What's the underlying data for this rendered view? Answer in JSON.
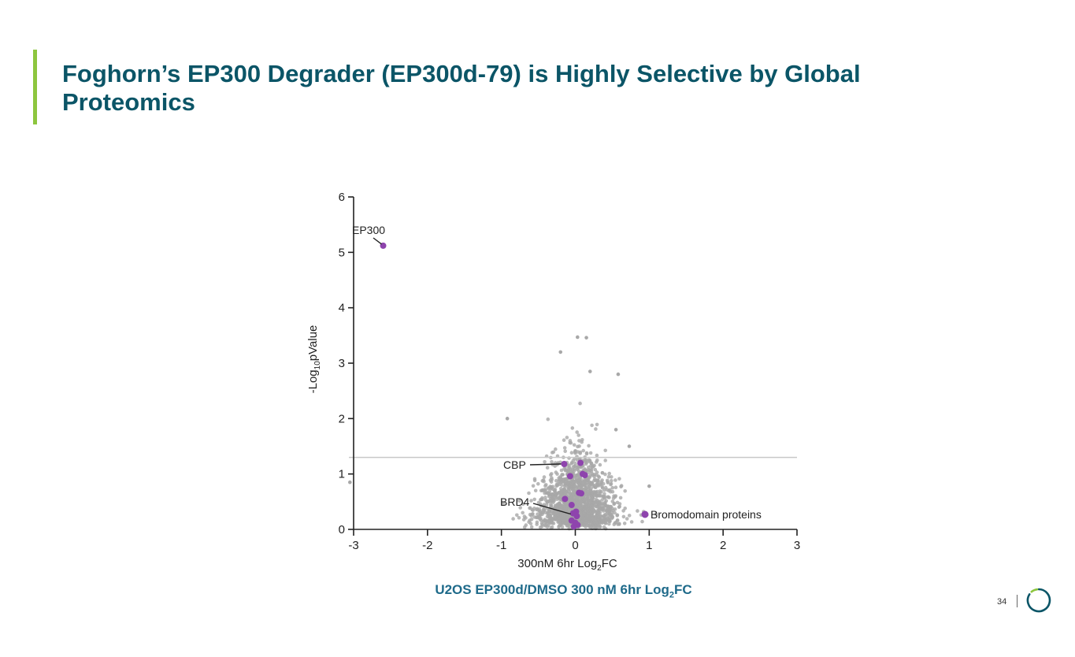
{
  "slide": {
    "title": "Foghorn’s EP300 Degrader (EP300d-79) is Highly Selective by Global Proteomics",
    "caption_main": "U2OS EP300d/DMSO 300 nM 6hr Log",
    "caption_sub": "2",
    "caption_tail": "FC",
    "page_number": "34",
    "accent_color": "#8dc63f",
    "title_color": "#0b5567",
    "logo_icon": "foghorn-ring-logo-icon"
  },
  "chart_data": {
    "type": "scatter",
    "title": "",
    "xlabel_main": "300nM 6hr Log",
    "xlabel_sub": "2",
    "xlabel_tail": "FC",
    "ylabel_main": "-Log",
    "ylabel_sub": "10",
    "ylabel_tail": "pValue",
    "xlim": [
      -3,
      3
    ],
    "ylim": [
      0,
      6
    ],
    "x_ticks": [
      -3,
      -2,
      -1,
      0,
      1,
      2,
      3
    ],
    "x_tick_labels": [
      "-3",
      "-2",
      "-1",
      "0",
      "1",
      "2",
      "3"
    ],
    "y_ticks": [
      0,
      1,
      2,
      3,
      4,
      5,
      6
    ],
    "y_tick_labels": [
      "0",
      "1",
      "2",
      "3",
      "4",
      "5",
      "6"
    ],
    "significance_line_y": 1.3,
    "grid": false,
    "legend_position": "bottom-right",
    "colors": {
      "background_points": "#a8a8a8",
      "highlight_points": "#8e44ad",
      "axis": "#222222",
      "threshold_line": "#c8c8c8"
    },
    "series": [
      {
        "name": "Bromodomain proteins",
        "points": [
          {
            "x": -2.6,
            "y": 5.12
          },
          {
            "x": -0.15,
            "y": 1.18
          },
          {
            "x": 0.07,
            "y": 1.2
          },
          {
            "x": -0.07,
            "y": 0.96
          },
          {
            "x": 0.1,
            "y": 1.0
          },
          {
            "x": 0.13,
            "y": 0.98
          },
          {
            "x": 0.05,
            "y": 0.66
          },
          {
            "x": 0.08,
            "y": 0.65
          },
          {
            "x": -0.14,
            "y": 0.55
          },
          {
            "x": -0.05,
            "y": 0.44
          },
          {
            "x": 0.01,
            "y": 0.32
          },
          {
            "x": -0.03,
            "y": 0.29
          },
          {
            "x": 0.02,
            "y": 0.24
          },
          {
            "x": -0.05,
            "y": 0.16
          },
          {
            "x": 0.0,
            "y": 0.12
          },
          {
            "x": 0.03,
            "y": 0.08
          },
          {
            "x": -0.02,
            "y": 0.05
          }
        ]
      }
    ],
    "background_summary": {
      "description_points": [
        {
          "x": -3.05,
          "y": 0.85
        },
        {
          "x": 0.03,
          "y": 3.47
        },
        {
          "x": 0.15,
          "y": 3.46
        },
        {
          "x": -0.2,
          "y": 3.2
        },
        {
          "x": 0.58,
          "y": 2.8
        },
        {
          "x": 0.73,
          "y": 1.5
        },
        {
          "x": 1.0,
          "y": 0.78
        },
        {
          "x": -0.92,
          "y": 2.0
        },
        {
          "x": 0.2,
          "y": 2.85
        },
        {
          "x": 0.55,
          "y": 1.8
        }
      ]
    },
    "annotations": [
      {
        "text": "EP300",
        "point_x": -2.6,
        "point_y": 5.12
      },
      {
        "text": "CBP",
        "point_x": -0.15,
        "point_y": 1.18
      },
      {
        "text": "BRD4",
        "point_x": -0.03,
        "point_y": 0.29
      }
    ]
  }
}
